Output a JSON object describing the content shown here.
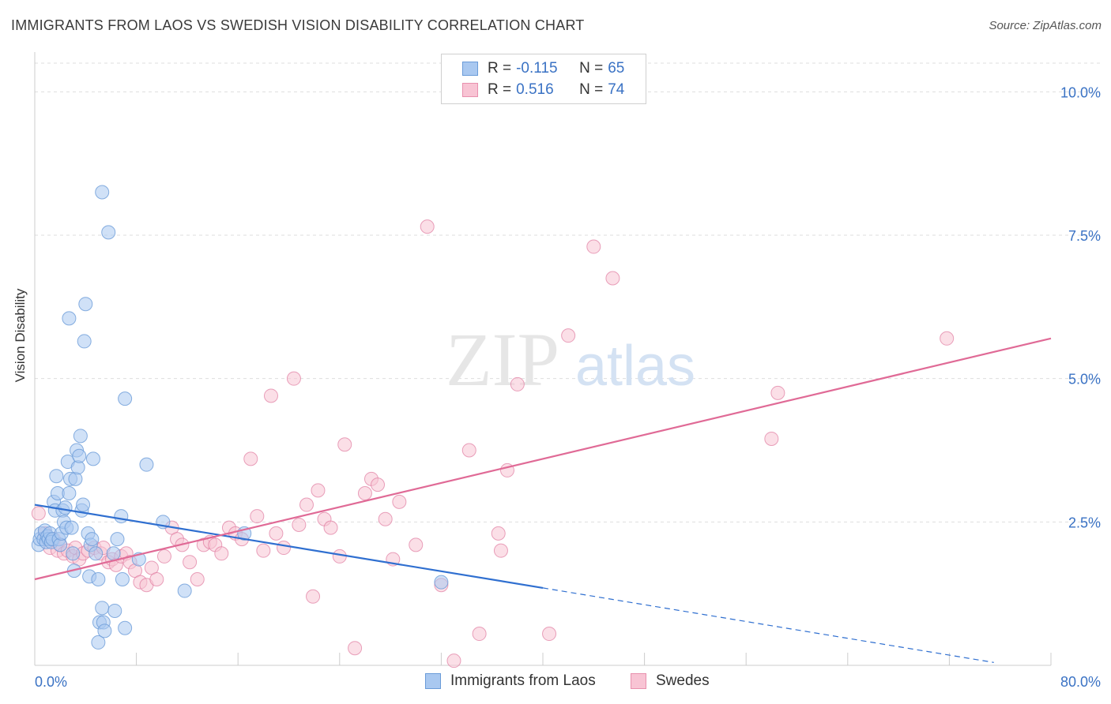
{
  "title": "IMMIGRANTS FROM LAOS VS SWEDISH VISION DISABILITY CORRELATION CHART",
  "source": "Source: ZipAtlas.com",
  "watermark": {
    "zip": "ZIP",
    "atlas": "atlas"
  },
  "legend": {
    "rows": [
      {
        "r_label": "R =",
        "r_value": "-0.115",
        "n_label": "N =",
        "n_value": "65",
        "color": "#a9c8f0",
        "border": "#6a9bd8"
      },
      {
        "r_label": "R =",
        "r_value": "0.516",
        "n_label": "N =",
        "n_value": "74",
        "color": "#f8c4d4",
        "border": "#e890ae"
      }
    ]
  },
  "bottom_legend": [
    "Immigrants from Laos",
    "Swedes"
  ],
  "chart_data": {
    "type": "scatter",
    "title": "IMMIGRANTS FROM LAOS VS SWEDISH VISION DISABILITY CORRELATION CHART",
    "xlabel": "",
    "ylabel": "Vision Disability",
    "xlim": [
      0,
      80
    ],
    "ylim": [
      0,
      10.5
    ],
    "x_tick_labels": [
      "0.0%",
      "80.0%"
    ],
    "y_ticks": [
      2.5,
      5.0,
      7.5,
      10.0
    ],
    "y_tick_labels": [
      "2.5%",
      "5.0%",
      "7.5%",
      "10.0%"
    ],
    "grid": "horizontal dashed",
    "legend_position": "top-center",
    "series": [
      {
        "name": "Immigrants from Laos",
        "color": "#6a9bd8",
        "fill": "#a9c8f0",
        "trend_line": {
          "x": [
            0,
            40
          ],
          "y": [
            2.8,
            1.35
          ],
          "dashed_extension": {
            "x": [
              40,
              75.5
            ],
            "y": [
              1.35,
              0.05
            ]
          }
        },
        "points": [
          [
            0.3,
            2.1
          ],
          [
            0.4,
            2.2
          ],
          [
            0.5,
            2.3
          ],
          [
            0.7,
            2.2
          ],
          [
            0.8,
            2.35
          ],
          [
            0.9,
            2.15
          ],
          [
            1.0,
            2.25
          ],
          [
            1.1,
            2.2
          ],
          [
            1.2,
            2.3
          ],
          [
            1.3,
            2.15
          ],
          [
            1.4,
            2.2
          ],
          [
            1.5,
            2.85
          ],
          [
            1.6,
            2.7
          ],
          [
            1.7,
            3.3
          ],
          [
            1.8,
            3.0
          ],
          [
            1.9,
            2.2
          ],
          [
            2.0,
            2.1
          ],
          [
            2.1,
            2.3
          ],
          [
            2.2,
            2.7
          ],
          [
            2.3,
            2.5
          ],
          [
            2.4,
            2.75
          ],
          [
            2.5,
            2.4
          ],
          [
            2.6,
            3.55
          ],
          [
            2.7,
            3.0
          ],
          [
            2.8,
            3.25
          ],
          [
            2.9,
            2.4
          ],
          [
            3.0,
            1.95
          ],
          [
            3.1,
            1.65
          ],
          [
            3.2,
            3.25
          ],
          [
            3.3,
            3.75
          ],
          [
            3.4,
            3.45
          ],
          [
            3.5,
            3.65
          ],
          [
            3.6,
            4.0
          ],
          [
            3.7,
            2.7
          ],
          [
            3.8,
            2.8
          ],
          [
            3.9,
            5.65
          ],
          [
            4.0,
            6.3
          ],
          [
            2.7,
            6.05
          ],
          [
            4.2,
            2.3
          ],
          [
            4.3,
            1.55
          ],
          [
            4.4,
            2.1
          ],
          [
            4.5,
            2.2
          ],
          [
            4.6,
            3.6
          ],
          [
            4.8,
            1.95
          ],
          [
            5.0,
            0.4
          ],
          [
            5.0,
            1.5
          ],
          [
            5.1,
            0.75
          ],
          [
            5.3,
            1.0
          ],
          [
            5.4,
            0.75
          ],
          [
            5.5,
            0.6
          ],
          [
            5.3,
            8.25
          ],
          [
            5.8,
            7.55
          ],
          [
            6.2,
            1.95
          ],
          [
            6.3,
            0.95
          ],
          [
            6.5,
            2.2
          ],
          [
            6.8,
            2.6
          ],
          [
            6.9,
            1.5
          ],
          [
            7.1,
            0.65
          ],
          [
            7.1,
            4.65
          ],
          [
            8.2,
            1.85
          ],
          [
            8.8,
            3.5
          ],
          [
            10.1,
            2.5
          ],
          [
            11.8,
            1.3
          ],
          [
            16.5,
            2.3
          ],
          [
            32.0,
            1.45
          ]
        ]
      },
      {
        "name": "Swedes",
        "color": "#e07aa0",
        "fill": "#f8c4d4",
        "trend_line": {
          "x": [
            0,
            80
          ],
          "y": [
            1.5,
            5.7
          ]
        },
        "points": [
          [
            0.3,
            2.65
          ],
          [
            0.8,
            2.3
          ],
          [
            1.0,
            2.2
          ],
          [
            1.2,
            2.05
          ],
          [
            1.5,
            2.2
          ],
          [
            1.8,
            2.0
          ],
          [
            2.0,
            2.1
          ],
          [
            2.3,
            1.95
          ],
          [
            2.6,
            2.0
          ],
          [
            3.0,
            1.9
          ],
          [
            3.2,
            2.05
          ],
          [
            3.5,
            1.85
          ],
          [
            3.8,
            1.95
          ],
          [
            4.2,
            2.0
          ],
          [
            4.7,
            2.05
          ],
          [
            5.2,
            1.95
          ],
          [
            5.4,
            2.05
          ],
          [
            5.8,
            1.8
          ],
          [
            6.1,
            1.85
          ],
          [
            6.4,
            1.75
          ],
          [
            6.8,
            1.9
          ],
          [
            7.2,
            1.95
          ],
          [
            7.5,
            1.8
          ],
          [
            7.9,
            1.65
          ],
          [
            8.3,
            1.45
          ],
          [
            8.8,
            1.4
          ],
          [
            9.2,
            1.7
          ],
          [
            9.6,
            1.5
          ],
          [
            10.2,
            1.9
          ],
          [
            10.8,
            2.4
          ],
          [
            11.2,
            2.2
          ],
          [
            11.6,
            2.1
          ],
          [
            12.2,
            1.8
          ],
          [
            12.8,
            1.5
          ],
          [
            13.3,
            2.1
          ],
          [
            13.8,
            2.15
          ],
          [
            14.2,
            2.1
          ],
          [
            14.7,
            1.95
          ],
          [
            15.3,
            2.4
          ],
          [
            15.8,
            2.3
          ],
          [
            16.3,
            2.2
          ],
          [
            17.0,
            3.6
          ],
          [
            17.5,
            2.6
          ],
          [
            18.0,
            2.0
          ],
          [
            18.6,
            4.7
          ],
          [
            19.0,
            2.3
          ],
          [
            19.6,
            2.05
          ],
          [
            20.4,
            5.0
          ],
          [
            20.8,
            2.45
          ],
          [
            21.4,
            2.8
          ],
          [
            21.9,
            1.2
          ],
          [
            22.3,
            3.05
          ],
          [
            22.8,
            2.55
          ],
          [
            23.3,
            2.4
          ],
          [
            24.0,
            1.9
          ],
          [
            24.4,
            3.85
          ],
          [
            25.2,
            0.3
          ],
          [
            26.0,
            3.0
          ],
          [
            26.5,
            3.25
          ],
          [
            27.0,
            3.15
          ],
          [
            27.6,
            2.55
          ],
          [
            28.2,
            1.85
          ],
          [
            28.7,
            2.85
          ],
          [
            30.0,
            2.1
          ],
          [
            32.0,
            1.4
          ],
          [
            33.0,
            0.08
          ],
          [
            34.2,
            3.75
          ],
          [
            35.0,
            0.55
          ],
          [
            36.5,
            2.3
          ],
          [
            36.7,
            2.0
          ],
          [
            37.2,
            3.4
          ],
          [
            38.0,
            4.9
          ],
          [
            40.5,
            0.55
          ],
          [
            44.0,
            7.3
          ]
        ],
        "extra_points": [
          [
            30.9,
            7.65
          ],
          [
            42.0,
            5.75
          ],
          [
            45.5,
            6.75
          ],
          [
            58.0,
            3.95
          ],
          [
            58.5,
            4.75
          ],
          [
            71.8,
            5.7
          ]
        ]
      }
    ]
  }
}
